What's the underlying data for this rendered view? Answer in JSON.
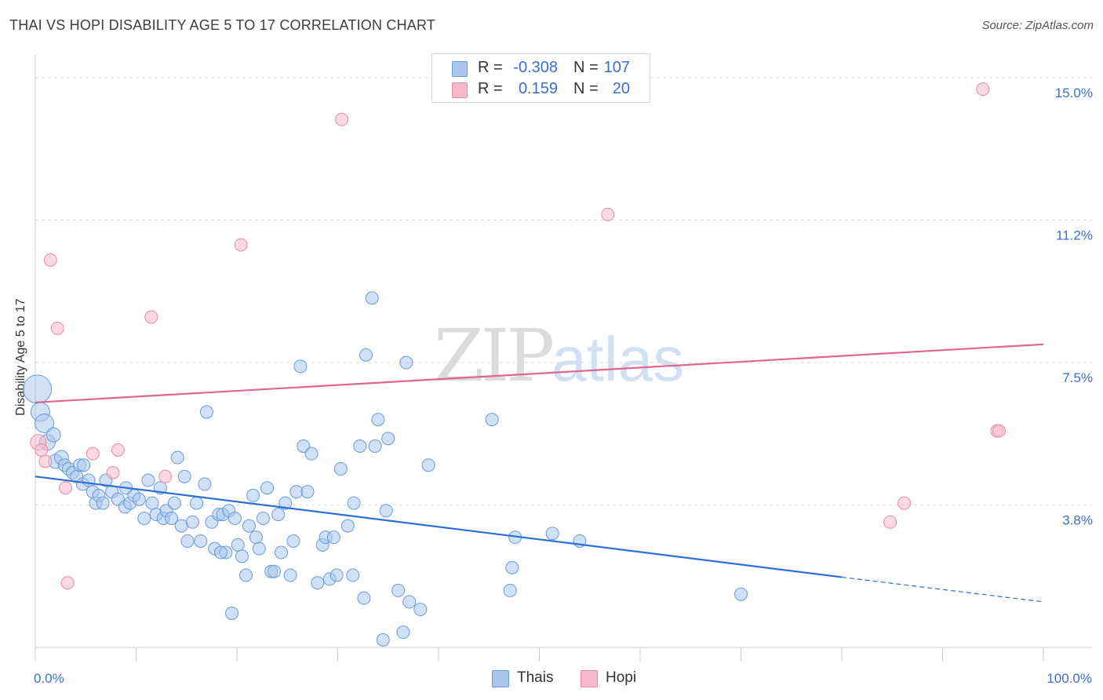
{
  "header": {
    "title": "THAI VS HOPI DISABILITY AGE 5 TO 17 CORRELATION CHART",
    "source": "Source: ZipAtlas.com"
  },
  "watermark": {
    "zip": "ZIP",
    "atlas": "atlas"
  },
  "colors": {
    "thais_fill": "#a9c6ec",
    "thais_stroke": "#6a9bd8",
    "thais_line": "#2a6fd6",
    "hopi_fill": "#f5b9cb",
    "hopi_stroke": "#e88aa6",
    "hopi_line": "#e0668f",
    "axis_text": "#3a6fcf",
    "grid": "#dcdcdc"
  },
  "legend_top": {
    "rows": [
      {
        "series": "Thais",
        "r_label": "R =",
        "r_value": "-0.308",
        "n_label": "N =",
        "n_value": "107"
      },
      {
        "series": "Hopi",
        "r_label": "R =",
        "r_value": "0.159",
        "n_label": "N =",
        "n_value": "20"
      }
    ]
  },
  "legend_bottom": {
    "items": [
      "Thais",
      "Hopi"
    ]
  },
  "chart_data": {
    "type": "scatter",
    "title": "THAI VS HOPI DISABILITY AGE 5 TO 17 CORRELATION CHART",
    "xlabel": "",
    "ylabel": "Disability Age 5 to 17",
    "xlim": [
      0,
      100
    ],
    "ylim": [
      0,
      15.6
    ],
    "x_tick_labels": [
      {
        "value": 0,
        "label": "0.0%"
      },
      {
        "value": 100,
        "label": "100.0%"
      }
    ],
    "y_ticks": [
      {
        "value": 3.75,
        "label": "3.8%"
      },
      {
        "value": 7.5,
        "label": "7.5%"
      },
      {
        "value": 11.25,
        "label": "11.2%"
      },
      {
        "value": 15.0,
        "label": "15.0%"
      }
    ],
    "x_minor_ticks": [
      0,
      10,
      20,
      30,
      40,
      50,
      60,
      70,
      80,
      90,
      100
    ],
    "grid": true,
    "series": [
      {
        "name": "Thais",
        "trend": {
          "x": [
            0,
            80
          ],
          "y": [
            4.5,
            1.85
          ],
          "dashed_x": [
            80,
            100
          ],
          "dashed_y": [
            1.85,
            1.2
          ]
        },
        "points": [
          [
            0.2,
            6.8,
            18
          ],
          [
            0.5,
            6.2,
            12
          ],
          [
            0.9,
            5.9,
            12
          ],
          [
            1.2,
            5.4,
            10
          ],
          [
            1.8,
            5.6,
            9
          ],
          [
            2.0,
            4.9,
            9
          ],
          [
            2.6,
            5.0,
            9
          ],
          [
            2.9,
            4.8,
            8
          ],
          [
            3.3,
            4.7,
            8
          ],
          [
            3.7,
            4.6,
            8
          ],
          [
            4.1,
            4.5,
            8
          ],
          [
            4.4,
            4.8,
            8
          ],
          [
            4.8,
            4.8,
            8
          ],
          [
            4.7,
            4.3,
            8
          ],
          [
            5.3,
            4.4,
            8
          ],
          [
            5.7,
            4.1,
            8
          ],
          [
            6.0,
            3.8,
            8
          ],
          [
            6.3,
            4.0,
            8
          ],
          [
            6.7,
            3.8,
            8
          ],
          [
            7.0,
            4.4,
            8
          ],
          [
            7.6,
            4.1,
            8
          ],
          [
            8.2,
            3.9,
            8
          ],
          [
            8.9,
            3.7,
            8
          ],
          [
            9.0,
            4.2,
            8
          ],
          [
            9.4,
            3.8,
            8
          ],
          [
            9.8,
            4.0,
            8
          ],
          [
            10.3,
            3.9,
            8
          ],
          [
            10.8,
            3.4,
            8
          ],
          [
            11.2,
            4.4,
            8
          ],
          [
            11.6,
            3.8,
            8
          ],
          [
            12.0,
            3.5,
            8
          ],
          [
            12.4,
            4.2,
            8
          ],
          [
            12.7,
            3.4,
            8
          ],
          [
            13.0,
            3.6,
            8
          ],
          [
            13.5,
            3.4,
            8
          ],
          [
            13.8,
            3.8,
            8
          ],
          [
            14.1,
            5.0,
            8
          ],
          [
            14.5,
            3.2,
            8
          ],
          [
            14.8,
            4.5,
            8
          ],
          [
            15.1,
            2.8,
            8
          ],
          [
            15.6,
            3.3,
            8
          ],
          [
            16.0,
            3.8,
            8
          ],
          [
            16.4,
            2.8,
            8
          ],
          [
            16.8,
            4.3,
            8
          ],
          [
            17.0,
            6.2,
            8
          ],
          [
            17.5,
            3.3,
            8
          ],
          [
            17.8,
            2.6,
            8
          ],
          [
            18.2,
            3.5,
            8
          ],
          [
            18.6,
            3.5,
            8
          ],
          [
            18.9,
            2.5,
            8
          ],
          [
            19.2,
            3.6,
            8
          ],
          [
            19.5,
            0.9,
            8
          ],
          [
            19.8,
            3.4,
            8
          ],
          [
            20.1,
            2.7,
            8
          ],
          [
            20.5,
            2.4,
            8
          ],
          [
            20.9,
            1.9,
            8
          ],
          [
            21.2,
            3.2,
            8
          ],
          [
            21.6,
            4.0,
            8
          ],
          [
            21.9,
            2.9,
            8
          ],
          [
            22.2,
            2.6,
            8
          ],
          [
            22.6,
            3.4,
            8
          ],
          [
            23.0,
            4.2,
            8
          ],
          [
            23.4,
            2.0,
            8
          ],
          [
            23.7,
            2.0,
            8
          ],
          [
            24.1,
            3.5,
            8
          ],
          [
            24.4,
            2.5,
            8
          ],
          [
            24.8,
            3.8,
            8
          ],
          [
            25.3,
            1.9,
            8
          ],
          [
            25.6,
            2.8,
            8
          ],
          [
            25.9,
            4.1,
            8
          ],
          [
            26.3,
            7.4,
            8
          ],
          [
            26.6,
            5.3,
            8
          ],
          [
            27.0,
            4.1,
            8
          ],
          [
            27.4,
            5.1,
            8
          ],
          [
            28.0,
            1.7,
            8
          ],
          [
            28.5,
            2.7,
            8
          ],
          [
            28.8,
            2.9,
            8
          ],
          [
            29.2,
            1.8,
            8
          ],
          [
            29.6,
            2.9,
            8
          ],
          [
            29.9,
            1.9,
            8
          ],
          [
            30.3,
            4.7,
            8
          ],
          [
            31.0,
            3.2,
            8
          ],
          [
            31.6,
            3.8,
            8
          ],
          [
            32.2,
            5.3,
            8
          ],
          [
            32.6,
            1.3,
            8
          ],
          [
            32.8,
            7.7,
            8
          ],
          [
            33.4,
            9.2,
            8
          ],
          [
            33.7,
            5.3,
            8
          ],
          [
            34.0,
            6.0,
            8
          ],
          [
            34.5,
            0.2,
            8
          ],
          [
            35.0,
            5.5,
            8
          ],
          [
            36.0,
            1.5,
            8
          ],
          [
            36.5,
            0.4,
            8
          ],
          [
            36.8,
            7.5,
            8
          ],
          [
            37.1,
            1.2,
            8
          ],
          [
            38.2,
            1.0,
            8
          ],
          [
            39.0,
            4.8,
            8
          ],
          [
            45.3,
            6.0,
            8
          ],
          [
            47.1,
            1.5,
            8
          ],
          [
            47.3,
            2.1,
            8
          ],
          [
            47.6,
            2.9,
            8
          ],
          [
            51.3,
            3.0,
            8
          ],
          [
            54.0,
            2.8,
            8
          ],
          [
            70.0,
            1.4,
            8
          ],
          [
            34.8,
            3.6,
            8
          ],
          [
            31.5,
            1.9,
            8
          ],
          [
            18.4,
            2.5,
            8
          ]
        ]
      },
      {
        "name": "Hopi",
        "trend": {
          "x": [
            0,
            100
          ],
          "y": [
            6.45,
            7.98
          ]
        },
        "points": [
          [
            0.3,
            5.4,
            10
          ],
          [
            0.6,
            5.2,
            8
          ],
          [
            1.0,
            4.9,
            8
          ],
          [
            1.5,
            10.2,
            8
          ],
          [
            2.2,
            8.4,
            8
          ],
          [
            3.0,
            4.2,
            8
          ],
          [
            3.2,
            1.7,
            8
          ],
          [
            5.7,
            5.1,
            8
          ],
          [
            7.7,
            4.6,
            8
          ],
          [
            8.2,
            5.2,
            8
          ],
          [
            11.5,
            8.7,
            8
          ],
          [
            12.9,
            4.5,
            8
          ],
          [
            20.4,
            10.6,
            8
          ],
          [
            30.4,
            13.9,
            8
          ],
          [
            56.8,
            11.4,
            8
          ],
          [
            84.8,
            3.3,
            8
          ],
          [
            86.2,
            3.8,
            8
          ],
          [
            94.0,
            14.7,
            8
          ],
          [
            95.4,
            5.7,
            8
          ],
          [
            95.6,
            5.7,
            8
          ]
        ]
      }
    ]
  }
}
